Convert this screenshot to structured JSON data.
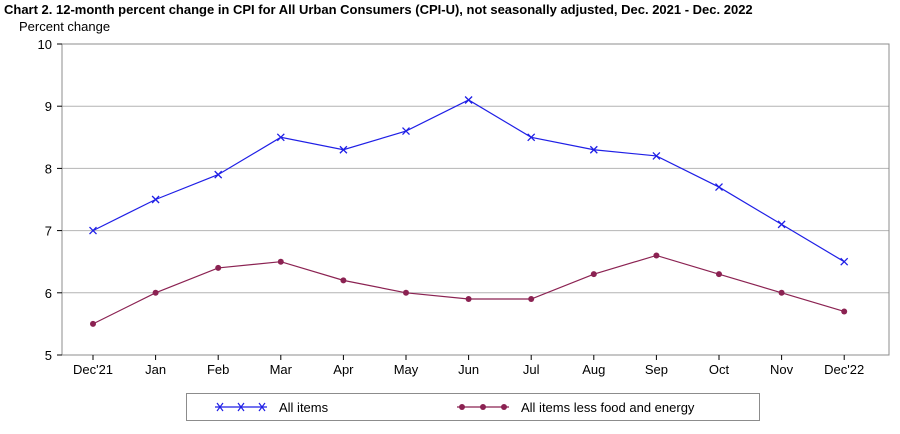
{
  "chart_data": {
    "type": "line",
    "title": "Chart 2. 12-month percent change in CPI for All Urban Consumers (CPI-U), not seasonally adjusted, Dec. 2021 - Dec. 2022",
    "ylabel": "Percent change",
    "xlabel": "",
    "categories": [
      "Dec'21",
      "Jan",
      "Feb",
      "Mar",
      "Apr",
      "May",
      "Jun",
      "Jul",
      "Aug",
      "Sep",
      "Oct",
      "Nov",
      "Dec'22"
    ],
    "ylim": [
      5,
      10
    ],
    "yticks": [
      5,
      6,
      7,
      8,
      9,
      10
    ],
    "grid": true,
    "legend_position": "bottom",
    "series": [
      {
        "name": "All items",
        "color": "#1f1fe6",
        "marker": "x",
        "values": [
          7.0,
          7.5,
          7.9,
          8.5,
          8.3,
          8.6,
          9.1,
          8.5,
          8.3,
          8.2,
          7.7,
          7.1,
          6.5
        ]
      },
      {
        "name": "All items less food and energy",
        "color": "#8b2252",
        "marker": "circle",
        "values": [
          5.5,
          6.0,
          6.4,
          6.5,
          6.2,
          6.0,
          5.9,
          5.9,
          6.3,
          6.6,
          6.3,
          6.0,
          5.7
        ]
      }
    ]
  }
}
